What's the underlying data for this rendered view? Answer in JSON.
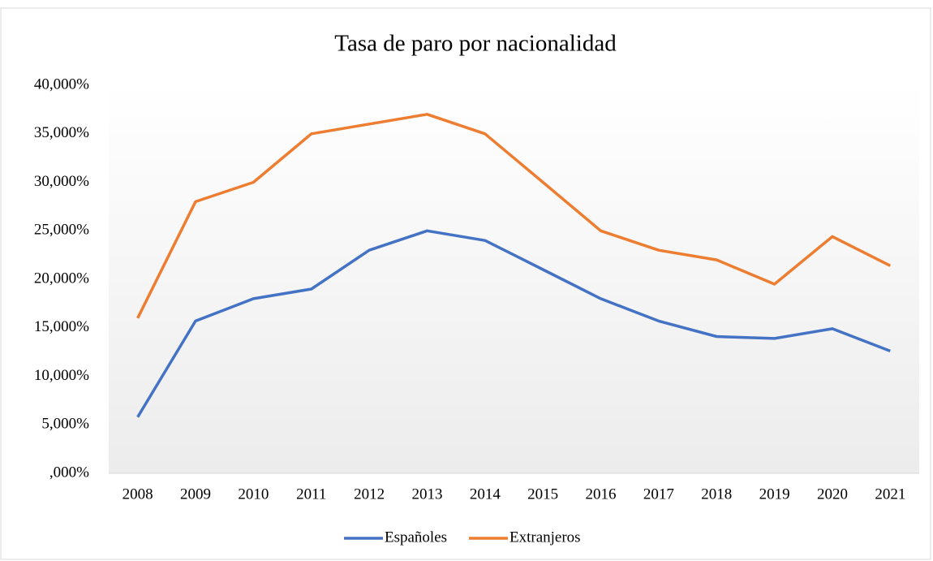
{
  "chart_data": {
    "type": "line",
    "title": "Tasa de paro por nacionalidad",
    "categories": [
      "2008",
      "2009",
      "2010",
      "2011",
      "2012",
      "2013",
      "2014",
      "2015",
      "2016",
      "2017",
      "2018",
      "2019",
      "2020",
      "2021"
    ],
    "series": [
      {
        "name": "Españoles",
        "color": "#4472c4",
        "values": [
          5.8,
          15.7,
          18,
          19,
          23,
          25,
          24,
          21,
          18,
          15.7,
          14.1,
          13.9,
          14.9,
          12.6
        ]
      },
      {
        "name": "Extranjeros",
        "color": "#ed7d31",
        "values": [
          16,
          28,
          30,
          35,
          36,
          37,
          35,
          30,
          25,
          23,
          22,
          19.5,
          24.4,
          21.4
        ]
      }
    ],
    "ylim": [
      0,
      40
    ],
    "yticks": [
      {
        "value": 0,
        "label": ",000%"
      },
      {
        "value": 5,
        "label": "5,000%"
      },
      {
        "value": 10,
        "label": "10,000%"
      },
      {
        "value": 15,
        "label": "15,000%"
      },
      {
        "value": 20,
        "label": "20,000%"
      },
      {
        "value": 25,
        "label": "25,000%"
      },
      {
        "value": 30,
        "label": "30,000%"
      },
      {
        "value": 35,
        "label": "35,000%"
      },
      {
        "value": 40,
        "label": "40,000%"
      }
    ],
    "grid": false,
    "legend": "bottom"
  }
}
